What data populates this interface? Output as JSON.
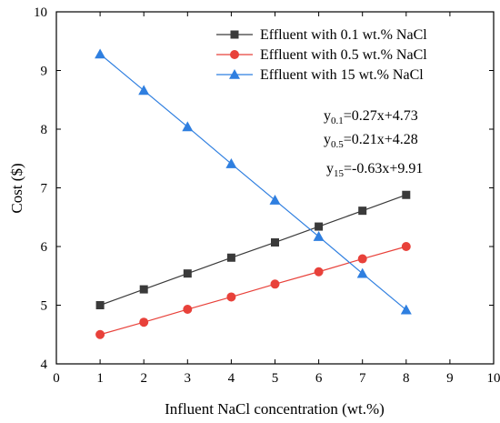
{
  "chart_data": {
    "type": "line",
    "xlabel": "Influent NaCl concentration (wt.%)",
    "ylabel": "Cost ($)",
    "xlim": [
      0,
      10
    ],
    "ylim": [
      4,
      10
    ],
    "xticks": [
      "0",
      "1",
      "2",
      "3",
      "4",
      "5",
      "6",
      "7",
      "8",
      "9",
      "10"
    ],
    "yticks": [
      "4",
      "5",
      "6",
      "7",
      "8",
      "9",
      "10"
    ],
    "grid": false,
    "legend_position": "top-right",
    "x": [
      1,
      2,
      3,
      4,
      5,
      6,
      7,
      8
    ],
    "series": [
      {
        "name": "Effluent with 0.1 wt.% NaCl",
        "marker": "square",
        "color": "#3a3a3a",
        "values": [
          5.0,
          5.27,
          5.54,
          5.81,
          6.07,
          6.34,
          6.61,
          6.88
        ]
      },
      {
        "name": "Effluent with 0.5 wt.% NaCl",
        "marker": "circle",
        "color": "#e8413a",
        "values": [
          4.5,
          4.71,
          4.93,
          5.14,
          5.36,
          5.57,
          5.79,
          6.0
        ]
      },
      {
        "name": "Effluent with 15 wt.% NaCl",
        "marker": "triangle",
        "color": "#2f7fe0",
        "values": [
          9.28,
          8.66,
          8.04,
          7.41,
          6.79,
          6.17,
          5.54,
          4.92
        ]
      }
    ],
    "annotations": [
      {
        "base": "y",
        "sub": "0.1",
        "text": "=0.27x+4.73"
      },
      {
        "base": "y",
        "sub": "0.5",
        "text": "=0.21x+4.28"
      },
      {
        "base": "y",
        "sub": "15",
        "text": "=-0.63x+9.91"
      }
    ]
  }
}
